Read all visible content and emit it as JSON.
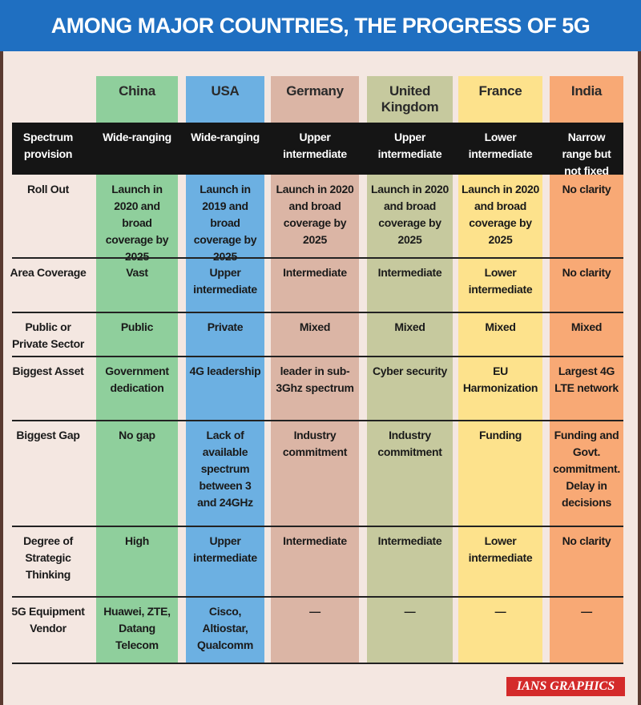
{
  "header": {
    "title": "AMONG MAJOR COUNTRIES, THE PROGRESS OF 5G"
  },
  "table": {
    "columns": [
      "China",
      "USA",
      "Germany",
      "United Kingdom",
      "France",
      "India"
    ],
    "rows": [
      {
        "label": "Spectrum provision",
        "cells": [
          "Wide-ranging",
          "Wide-ranging",
          "Upper intermediate",
          "Upper intermediate",
          "Lower intermediate",
          "Narrow range but not fixed"
        ]
      },
      {
        "label": "Roll Out",
        "cells": [
          "Launch in 2020 and broad coverage by 2025",
          "Launch in 2019 and broad coverage by 2025",
          "Launch in 2020 and broad coverage by 2025",
          "Launch in 2020 and broad coverage by 2025",
          "Launch in 2020 and broad coverage by 2025",
          "No clarity"
        ]
      },
      {
        "label": "Area Coverage",
        "cells": [
          "Vast",
          "Upper intermediate",
          "Intermediate",
          "Intermediate",
          "Lower intermediate",
          "No clarity"
        ]
      },
      {
        "label": "Public or Private Sector",
        "cells": [
          "Public",
          "Private",
          "Mixed",
          "Mixed",
          "Mixed",
          "Mixed"
        ]
      },
      {
        "label": "Biggest Asset",
        "cells": [
          "Government dedication",
          "4G leadership",
          "leader in sub-3Ghz spectrum",
          "Cyber security",
          "EU Harmonization",
          "Largest 4G LTE network"
        ]
      },
      {
        "label": "Biggest Gap",
        "cells": [
          "No gap",
          "Lack of available spectrum between 3 and 24GHz",
          "Industry commitment",
          "Industry commitment",
          "Funding",
          "Funding and Govt. commitment. Delay in decisions"
        ]
      },
      {
        "label": "Degree of Strategic Thinking",
        "cells": [
          "High",
          "Upper intermediate",
          "Intermediate",
          "Intermediate",
          "Lower intermediate",
          "No clarity"
        ]
      },
      {
        "label": "5G Equipment Vendor",
        "cells": [
          "Huawei, ZTE, Datang Telecom",
          "Cisco, Altiostar, Qualcomm",
          "—",
          "—",
          "—",
          "—"
        ]
      }
    ]
  },
  "footer": {
    "credit": "IANS GRAPHICS"
  }
}
